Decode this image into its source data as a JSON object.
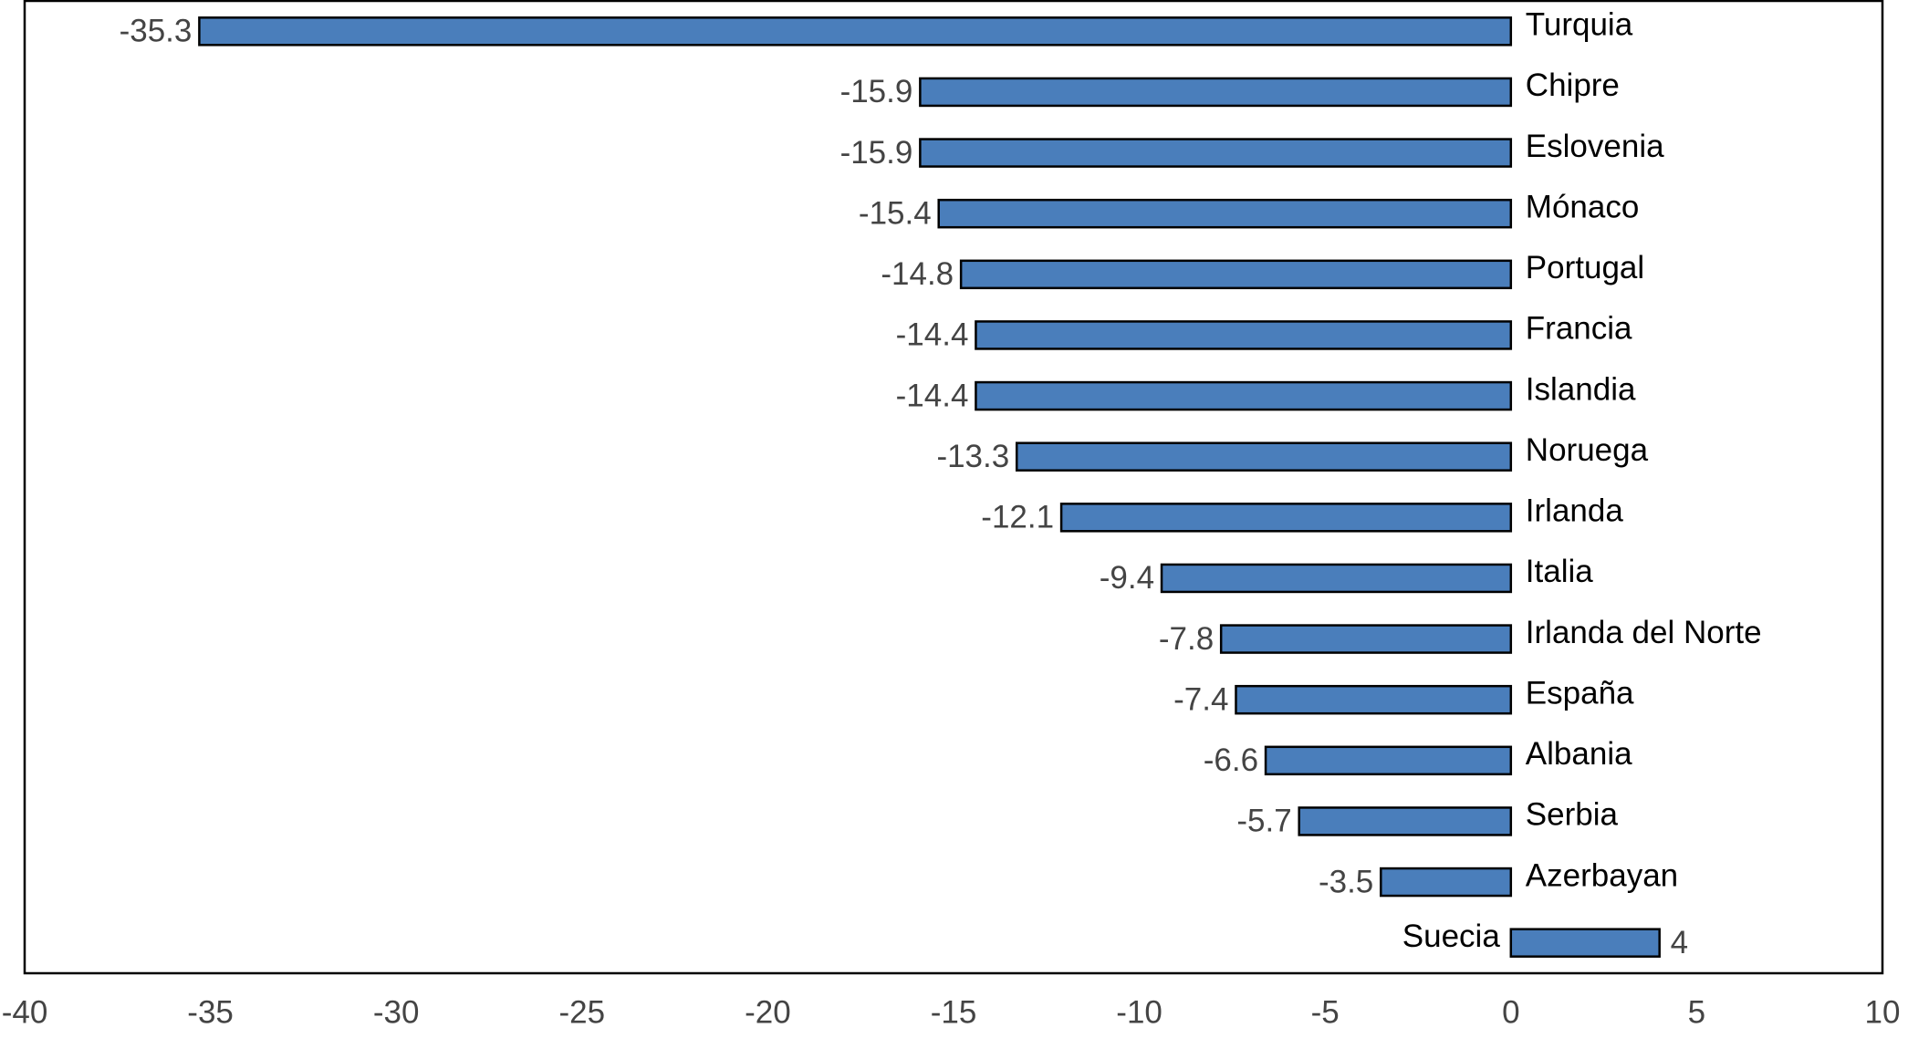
{
  "chart_data": {
    "type": "barh",
    "categories": [
      "Turquia",
      "Chipre",
      "Eslovenia",
      "Mónaco",
      "Portugal",
      "Francia",
      "Islandia",
      "Noruega",
      "Irlanda",
      "Italia",
      "Irlanda del Norte",
      "España",
      "Albania",
      "Serbia",
      "Azerbayan",
      "Suecia"
    ],
    "values": [
      -35.3,
      -15.9,
      -15.9,
      -15.4,
      -14.8,
      -14.4,
      -14.4,
      -13.3,
      -12.1,
      -9.4,
      -7.8,
      -7.4,
      -6.6,
      -5.7,
      -3.5,
      4
    ],
    "color": "#4a7ebb",
    "xlim": [
      -40,
      10
    ],
    "xticks": [
      -40,
      -35,
      -30,
      -25,
      -20,
      -15,
      -10,
      -5,
      0,
      5,
      10
    ],
    "grid": false
  }
}
